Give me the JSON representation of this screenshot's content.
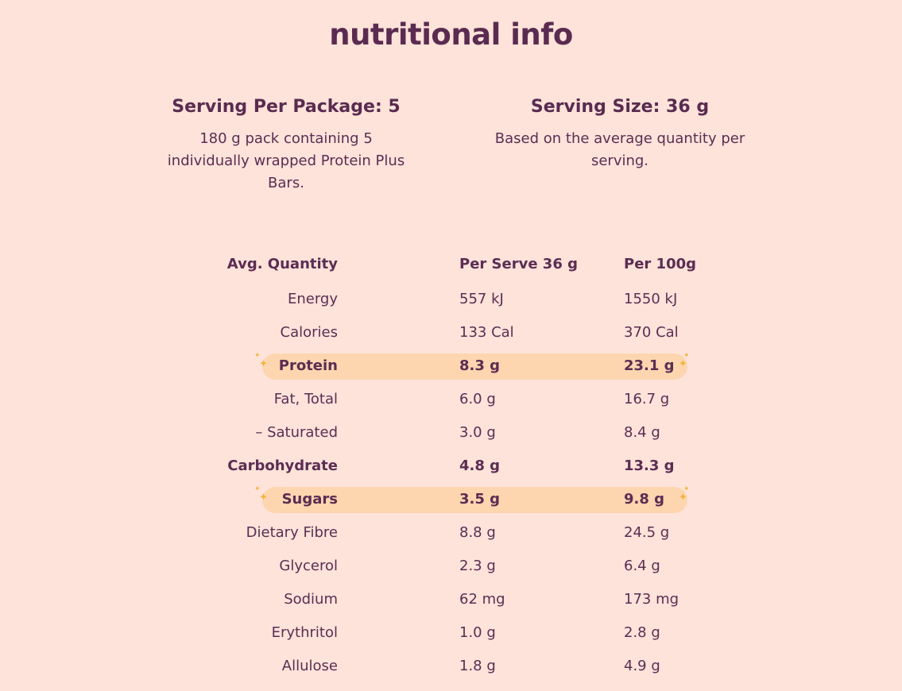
{
  "page_title": "nutritional info",
  "serving_per_package": {
    "heading": "Serving Per Package: 5",
    "description": "180 g pack containing 5 individually wrapped Protein Plus Bars."
  },
  "serving_size": {
    "heading": "Serving Size: 36 g",
    "description": "Based on the average quantity per serving."
  },
  "table": {
    "headers": [
      "Avg. Quantity",
      "Per Serve 36 g",
      "Per 100g"
    ],
    "rows": [
      {
        "name": "Energy",
        "per_serve": "557 kJ",
        "per_100g": "1550 kJ",
        "style": "normal"
      },
      {
        "name": "Calories",
        "per_serve": "133 Cal",
        "per_100g": "370 Cal",
        "style": "normal"
      },
      {
        "name": "Protein",
        "per_serve": "8.3 g",
        "per_100g": "23.1 g",
        "style": "highlight"
      },
      {
        "name": "Fat, Total",
        "per_serve": "6.0 g",
        "per_100g": "16.7 g",
        "style": "normal"
      },
      {
        "name": "– Saturated",
        "per_serve": "3.0 g",
        "per_100g": "8.4 g",
        "style": "normal"
      },
      {
        "name": "Carbohydrate",
        "per_serve": "4.8 g",
        "per_100g": "13.3 g",
        "style": "bold"
      },
      {
        "name": "Sugars",
        "per_serve": "3.5 g",
        "per_100g": "9.8 g",
        "style": "highlight"
      },
      {
        "name": "Dietary Fibre",
        "per_serve": "8.8 g",
        "per_100g": "24.5 g",
        "style": "normal"
      },
      {
        "name": "Glycerol",
        "per_serve": "2.3 g",
        "per_100g": "6.4 g",
        "style": "normal"
      },
      {
        "name": "Sodium",
        "per_serve": "62 mg",
        "per_100g": "173 mg",
        "style": "normal"
      },
      {
        "name": "Erythritol",
        "per_serve": "1.0 g",
        "per_100g": "2.8 g",
        "style": "normal"
      },
      {
        "name": "Allulose",
        "per_serve": "1.8 g",
        "per_100g": "4.9 g",
        "style": "normal"
      }
    ]
  },
  "colors": {
    "background": "#fde3da",
    "text": "#5b2d52",
    "highlight": "#fdd6b0",
    "sparkle": "#f3b43c"
  },
  "icons": {
    "highlight_decoration": "sparkle-icon"
  }
}
